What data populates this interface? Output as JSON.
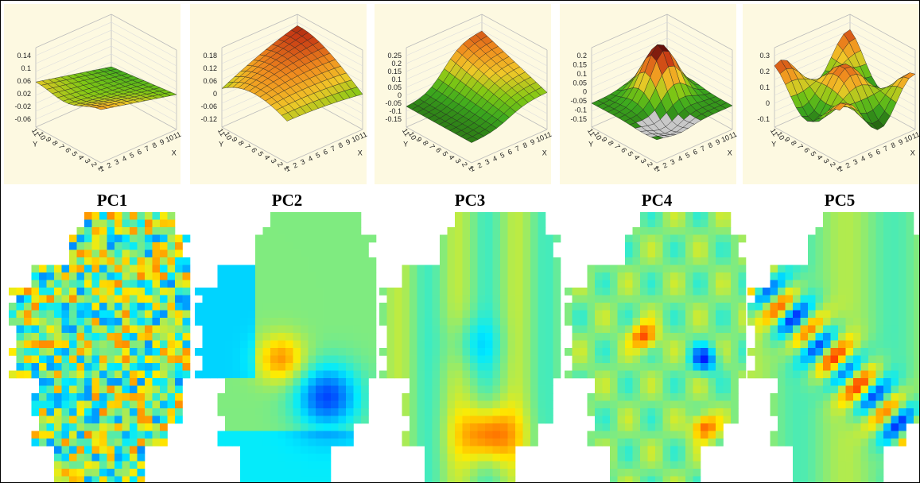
{
  "panels": [
    {
      "label": "PC1",
      "zticks": [
        "0.14",
        "0.1",
        "0.06",
        "0.02",
        "-0.02",
        "-0.06"
      ],
      "x_label": "X",
      "y_label": "Y",
      "x_ticks": [
        "1",
        "2",
        "3",
        "4",
        "5",
        "6",
        "7",
        "8",
        "9",
        "10",
        "11"
      ],
      "y_ticks": [
        "1",
        "2",
        "3",
        "4",
        "5",
        "6",
        "7",
        "8",
        "9",
        "10",
        "11"
      ]
    },
    {
      "label": "PC2",
      "zticks": [
        "0.18",
        "0.12",
        "0.06",
        "0",
        "-0.06",
        "-0.12"
      ],
      "x_label": "X",
      "y_label": "Y",
      "x_ticks": [
        "1",
        "2",
        "3",
        "4",
        "5",
        "6",
        "7",
        "8",
        "9",
        "10",
        "11"
      ],
      "y_ticks": [
        "1",
        "2",
        "3",
        "4",
        "5",
        "6",
        "7",
        "8",
        "9",
        "10",
        "11"
      ]
    },
    {
      "label": "PC3",
      "zticks": [
        "0.25",
        "0.2",
        "0.15",
        "0.1",
        "0.05",
        "0",
        "-0.05",
        "-0.1",
        "-0.15"
      ],
      "x_label": "X",
      "y_label": "Y",
      "x_ticks": [
        "1",
        "2",
        "3",
        "4",
        "5",
        "6",
        "7",
        "8",
        "9",
        "10",
        "11"
      ],
      "y_ticks": [
        "1",
        "2",
        "3",
        "4",
        "5",
        "6",
        "7",
        "8",
        "9",
        "10",
        "11"
      ]
    },
    {
      "label": "PC4",
      "zticks": [
        "0.2",
        "0.15",
        "0.1",
        "0.05",
        "0",
        "-0.05",
        "-0.1",
        "-0.15"
      ],
      "x_label": "X",
      "y_label": "Y",
      "x_ticks": [
        "1",
        "2",
        "3",
        "4",
        "5",
        "6",
        "7",
        "8",
        "9",
        "10",
        "11"
      ],
      "y_ticks": [
        "1",
        "2",
        "3",
        "4",
        "5",
        "6",
        "7",
        "8",
        "9",
        "10",
        "11"
      ]
    },
    {
      "label": "PC5",
      "zticks": [
        "0.3",
        "0.2",
        "0.1",
        "0",
        "-0.1"
      ],
      "x_label": "X",
      "y_label": "Y",
      "x_ticks": [
        "1",
        "2",
        "3",
        "4",
        "5",
        "6",
        "7",
        "8",
        "9",
        "10",
        "11"
      ],
      "y_ticks": [
        "1",
        "2",
        "3",
        "4",
        "5",
        "6",
        "7",
        "8",
        "9",
        "10",
        "11"
      ]
    }
  ]
}
